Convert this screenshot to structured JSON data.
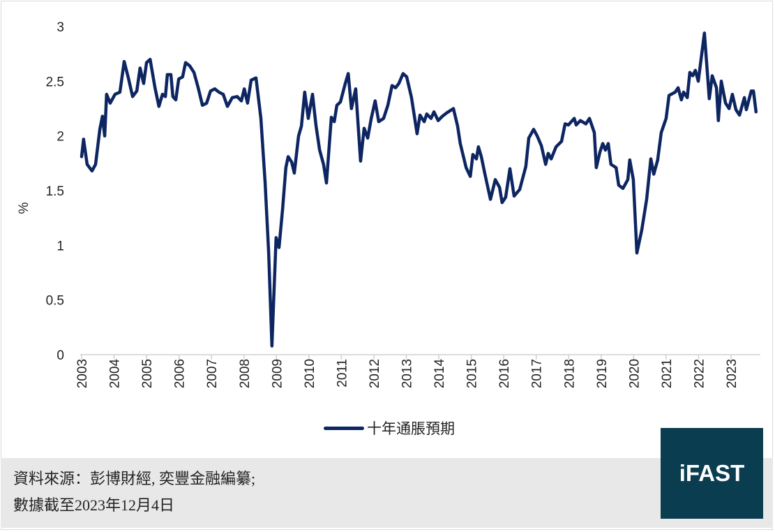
{
  "chart_data": {
    "type": "line",
    "title": "",
    "xlabel": "",
    "ylabel": "%",
    "ylim": [
      0,
      3
    ],
    "xlim": [
      2003,
      2023.9
    ],
    "y_ticks": [
      "0",
      "0.5",
      "1",
      "1.5",
      "2",
      "2.5",
      "3"
    ],
    "x_ticks": [
      "2003",
      "2004",
      "2005",
      "2006",
      "2007",
      "2008",
      "2009",
      "2010",
      "2011",
      "2012",
      "2013",
      "2014",
      "2015",
      "2016",
      "2017",
      "2018",
      "2019",
      "2020",
      "2021",
      "2022",
      "2023"
    ],
    "grid": false,
    "legend_position": "bottom",
    "series": [
      {
        "name": "十年通脹預期",
        "color": "#0d2561",
        "points": [
          [
            2003.0,
            1.81
          ],
          [
            2003.06,
            1.97
          ],
          [
            2003.17,
            1.74
          ],
          [
            2003.32,
            1.68
          ],
          [
            2003.43,
            1.74
          ],
          [
            2003.56,
            2.06
          ],
          [
            2003.64,
            2.18
          ],
          [
            2003.71,
            2.0
          ],
          [
            2003.77,
            2.38
          ],
          [
            2003.88,
            2.3
          ],
          [
            2004.03,
            2.38
          ],
          [
            2004.18,
            2.4
          ],
          [
            2004.31,
            2.68
          ],
          [
            2004.44,
            2.53
          ],
          [
            2004.57,
            2.36
          ],
          [
            2004.7,
            2.41
          ],
          [
            2004.8,
            2.62
          ],
          [
            2004.91,
            2.48
          ],
          [
            2005.0,
            2.67
          ],
          [
            2005.11,
            2.7
          ],
          [
            2005.26,
            2.44
          ],
          [
            2005.38,
            2.27
          ],
          [
            2005.49,
            2.38
          ],
          [
            2005.58,
            2.36
          ],
          [
            2005.64,
            2.56
          ],
          [
            2005.75,
            2.56
          ],
          [
            2005.81,
            2.36
          ],
          [
            2005.9,
            2.33
          ],
          [
            2005.99,
            2.52
          ],
          [
            2006.11,
            2.54
          ],
          [
            2006.2,
            2.67
          ],
          [
            2006.33,
            2.64
          ],
          [
            2006.46,
            2.58
          ],
          [
            2006.59,
            2.44
          ],
          [
            2006.72,
            2.28
          ],
          [
            2006.85,
            2.3
          ],
          [
            2006.97,
            2.41
          ],
          [
            2007.1,
            2.43
          ],
          [
            2007.23,
            2.4
          ],
          [
            2007.36,
            2.38
          ],
          [
            2007.49,
            2.27
          ],
          [
            2007.64,
            2.35
          ],
          [
            2007.79,
            2.36
          ],
          [
            2007.92,
            2.32
          ],
          [
            2008.01,
            2.43
          ],
          [
            2008.11,
            2.3
          ],
          [
            2008.22,
            2.51
          ],
          [
            2008.37,
            2.53
          ],
          [
            2008.52,
            2.16
          ],
          [
            2008.65,
            1.58
          ],
          [
            2008.76,
            0.94
          ],
          [
            2008.86,
            0.08
          ],
          [
            2008.99,
            1.07
          ],
          [
            2009.08,
            0.98
          ],
          [
            2009.19,
            1.33
          ],
          [
            2009.29,
            1.71
          ],
          [
            2009.36,
            1.81
          ],
          [
            2009.47,
            1.76
          ],
          [
            2009.55,
            1.66
          ],
          [
            2009.68,
            2.0
          ],
          [
            2009.77,
            2.09
          ],
          [
            2009.87,
            2.4
          ],
          [
            2009.98,
            2.16
          ],
          [
            2010.11,
            2.38
          ],
          [
            2010.22,
            2.09
          ],
          [
            2010.33,
            1.87
          ],
          [
            2010.45,
            1.74
          ],
          [
            2010.54,
            1.57
          ],
          [
            2010.69,
            2.17
          ],
          [
            2010.78,
            2.13
          ],
          [
            2010.86,
            2.28
          ],
          [
            2010.97,
            2.31
          ],
          [
            2011.12,
            2.48
          ],
          [
            2011.21,
            2.57
          ],
          [
            2011.31,
            2.25
          ],
          [
            2011.44,
            2.43
          ],
          [
            2011.59,
            1.77
          ],
          [
            2011.7,
            2.07
          ],
          [
            2011.81,
            1.98
          ],
          [
            2011.92,
            2.16
          ],
          [
            2012.04,
            2.32
          ],
          [
            2012.15,
            2.13
          ],
          [
            2012.3,
            2.16
          ],
          [
            2012.43,
            2.28
          ],
          [
            2012.56,
            2.46
          ],
          [
            2012.67,
            2.44
          ],
          [
            2012.77,
            2.48
          ],
          [
            2012.9,
            2.57
          ],
          [
            2013.01,
            2.54
          ],
          [
            2013.16,
            2.35
          ],
          [
            2013.33,
            2.02
          ],
          [
            2013.42,
            2.19
          ],
          [
            2013.55,
            2.13
          ],
          [
            2013.63,
            2.2
          ],
          [
            2013.76,
            2.16
          ],
          [
            2013.85,
            2.22
          ],
          [
            2013.98,
            2.14
          ],
          [
            2014.11,
            2.18
          ],
          [
            2014.24,
            2.21
          ],
          [
            2014.45,
            2.25
          ],
          [
            2014.58,
            2.09
          ],
          [
            2014.66,
            1.93
          ],
          [
            2014.84,
            1.71
          ],
          [
            2014.97,
            1.63
          ],
          [
            2015.05,
            1.83
          ],
          [
            2015.16,
            1.79
          ],
          [
            2015.22,
            1.9
          ],
          [
            2015.31,
            1.81
          ],
          [
            2015.42,
            1.65
          ],
          [
            2015.59,
            1.42
          ],
          [
            2015.74,
            1.6
          ],
          [
            2015.87,
            1.53
          ],
          [
            2015.95,
            1.39
          ],
          [
            2016.06,
            1.44
          ],
          [
            2016.19,
            1.7
          ],
          [
            2016.32,
            1.45
          ],
          [
            2016.49,
            1.51
          ],
          [
            2016.68,
            1.72
          ],
          [
            2016.77,
            1.98
          ],
          [
            2016.92,
            2.06
          ],
          [
            2017.03,
            2.0
          ],
          [
            2017.16,
            1.91
          ],
          [
            2017.29,
            1.74
          ],
          [
            2017.37,
            1.84
          ],
          [
            2017.46,
            1.79
          ],
          [
            2017.61,
            1.9
          ],
          [
            2017.78,
            1.95
          ],
          [
            2017.89,
            2.11
          ],
          [
            2017.99,
            2.1
          ],
          [
            2018.17,
            2.16
          ],
          [
            2018.23,
            2.1
          ],
          [
            2018.36,
            2.14
          ],
          [
            2018.53,
            2.11
          ],
          [
            2018.64,
            2.16
          ],
          [
            2018.79,
            2.03
          ],
          [
            2018.85,
            1.71
          ],
          [
            2018.96,
            1.85
          ],
          [
            2019.05,
            1.93
          ],
          [
            2019.13,
            1.87
          ],
          [
            2019.22,
            1.93
          ],
          [
            2019.3,
            1.74
          ],
          [
            2019.46,
            1.71
          ],
          [
            2019.54,
            1.55
          ],
          [
            2019.67,
            1.52
          ],
          [
            2019.82,
            1.6
          ],
          [
            2019.88,
            1.78
          ],
          [
            2019.99,
            1.6
          ],
          [
            2020.1,
            0.93
          ],
          [
            2020.25,
            1.14
          ],
          [
            2020.4,
            1.42
          ],
          [
            2020.53,
            1.79
          ],
          [
            2020.62,
            1.65
          ],
          [
            2020.74,
            1.78
          ],
          [
            2020.85,
            2.03
          ],
          [
            2021.0,
            2.16
          ],
          [
            2021.09,
            2.37
          ],
          [
            2021.28,
            2.4
          ],
          [
            2021.37,
            2.44
          ],
          [
            2021.47,
            2.33
          ],
          [
            2021.54,
            2.4
          ],
          [
            2021.65,
            2.35
          ],
          [
            2021.73,
            2.58
          ],
          [
            2021.82,
            2.55
          ],
          [
            2021.9,
            2.6
          ],
          [
            2021.99,
            2.5
          ],
          [
            2022.18,
            2.94
          ],
          [
            2022.33,
            2.34
          ],
          [
            2022.42,
            2.55
          ],
          [
            2022.55,
            2.44
          ],
          [
            2022.61,
            2.14
          ],
          [
            2022.7,
            2.5
          ],
          [
            2022.83,
            2.3
          ],
          [
            2022.94,
            2.25
          ],
          [
            2023.04,
            2.38
          ],
          [
            2023.15,
            2.24
          ],
          [
            2023.26,
            2.19
          ],
          [
            2023.41,
            2.35
          ],
          [
            2023.47,
            2.24
          ],
          [
            2023.62,
            2.41
          ],
          [
            2023.69,
            2.41
          ],
          [
            2023.77,
            2.22
          ]
        ]
      }
    ]
  },
  "legend": {
    "label": "十年通脹預期"
  },
  "footer": {
    "source": "資料來源：彭博財經, 奕豐金融編纂;",
    "date_note": "數據截至2023年12月4日"
  },
  "logo": {
    "text": "iFAST",
    "color": "#0b3d50"
  }
}
